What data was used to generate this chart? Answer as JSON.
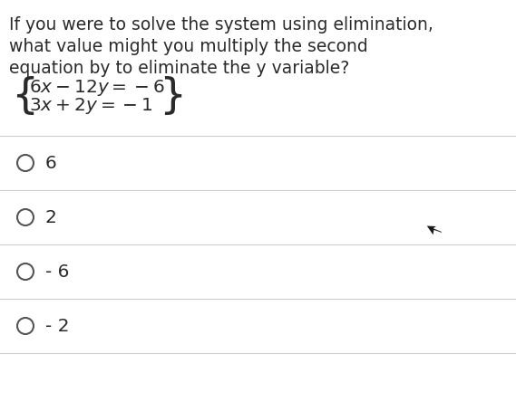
{
  "question_line1": "If you were to solve the system using elimination,",
  "question_line2": "what value might you multiply the second",
  "question_line3": "equation by to eliminate the y variable?",
  "options": [
    "6",
    "2",
    "- 6",
    "- 2"
  ],
  "bg_color": "#ffffff",
  "text_color": "#2a2a2a",
  "divider_color": "#cccccc",
  "question_fontsize": 13.5,
  "eq_fontsize": 14.5,
  "option_fontsize": 14.5
}
